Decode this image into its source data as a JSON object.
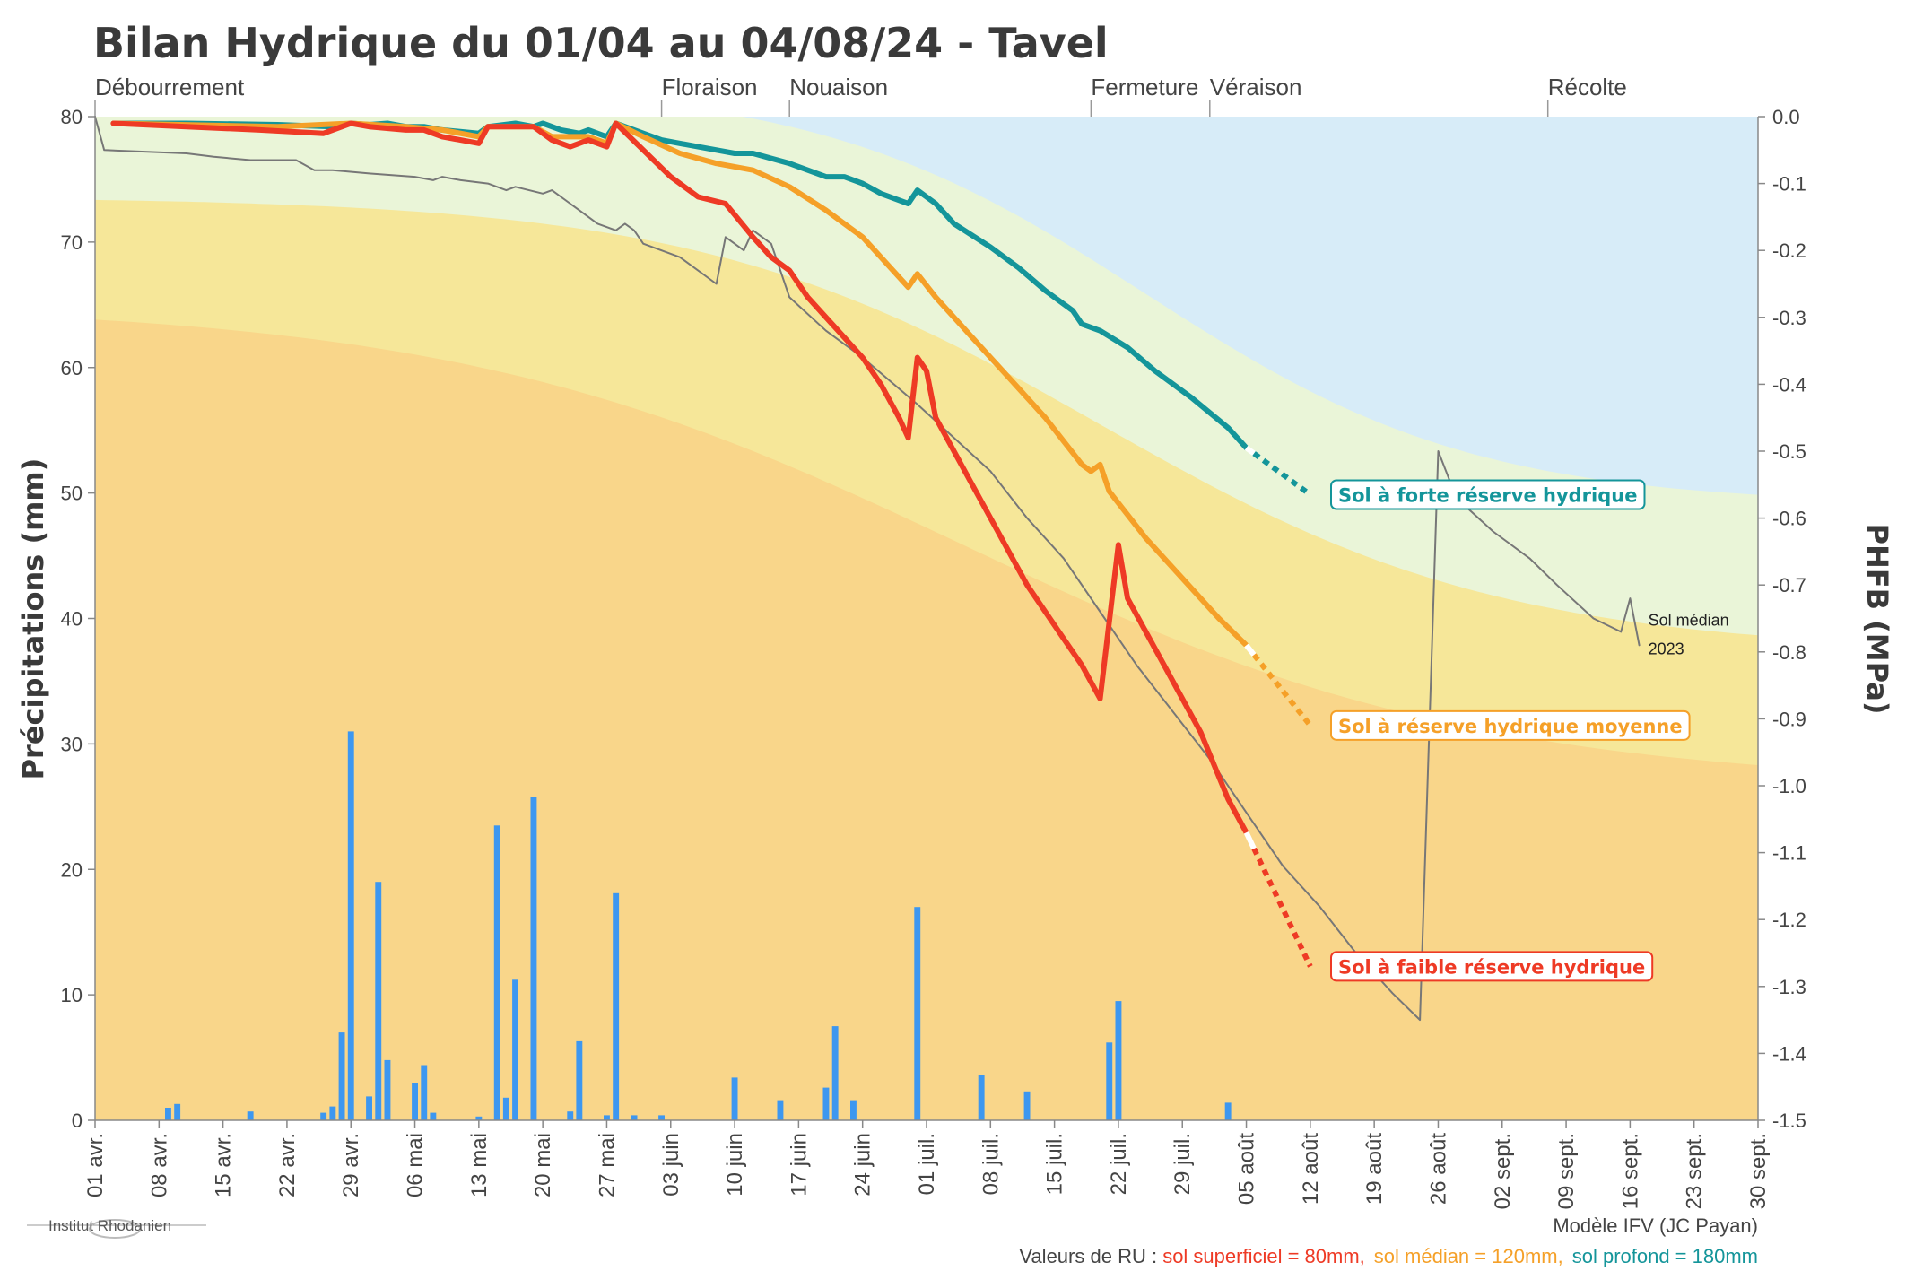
{
  "chart_data": {
    "type": "line",
    "title": "Bilan Hydrique du 01/04 au 04/08/24 - Tavel",
    "y_left_label": "Précipitations (mm)",
    "y_right_label": "PHFB (MPa)",
    "y_left_range": [
      0,
      80
    ],
    "y_right_range": [
      -1.5,
      0
    ],
    "y_left_ticks": [
      "0",
      "10",
      "20",
      "30",
      "40",
      "50",
      "60",
      "70",
      "80"
    ],
    "y_right_ticks": [
      "0.0",
      "-0.1",
      "-0.2",
      "-0.3",
      "-0.4",
      "-0.5",
      "-0.6",
      "-0.7",
      "-0.8",
      "-0.9",
      "-1.0",
      "-1.1",
      "-1.2",
      "-1.3",
      "-1.4",
      "-1.5"
    ],
    "x_range_days": [
      0,
      182
    ],
    "x_ticks": [
      {
        "day": 0,
        "label": "01 avr."
      },
      {
        "day": 7,
        "label": "08 avr."
      },
      {
        "day": 14,
        "label": "15 avr."
      },
      {
        "day": 21,
        "label": "22 avr."
      },
      {
        "day": 28,
        "label": "29 avr."
      },
      {
        "day": 35,
        "label": "06 mai"
      },
      {
        "day": 42,
        "label": "13 mai"
      },
      {
        "day": 49,
        "label": "20 mai"
      },
      {
        "day": 56,
        "label": "27 mai"
      },
      {
        "day": 63,
        "label": "03 juin"
      },
      {
        "day": 70,
        "label": "10 juin"
      },
      {
        "day": 77,
        "label": "17 juin"
      },
      {
        "day": 84,
        "label": "24 juin"
      },
      {
        "day": 91,
        "label": "01 juil."
      },
      {
        "day": 98,
        "label": "08 juil."
      },
      {
        "day": 105,
        "label": "15 juil."
      },
      {
        "day": 112,
        "label": "22 juil."
      },
      {
        "day": 119,
        "label": "29 juil."
      },
      {
        "day": 126,
        "label": "05 août"
      },
      {
        "day": 133,
        "label": "12 août"
      },
      {
        "day": 140,
        "label": "19 août"
      },
      {
        "day": 147,
        "label": "26 août"
      },
      {
        "day": 154,
        "label": "02 sept."
      },
      {
        "day": 161,
        "label": "09 sept."
      },
      {
        "day": 168,
        "label": "16 sept."
      },
      {
        "day": 175,
        "label": "23 sept."
      },
      {
        "day": 182,
        "label": "30 sept."
      }
    ],
    "stages": [
      {
        "label": "Débourrement",
        "day": 0
      },
      {
        "label": "Floraison",
        "day": 62
      },
      {
        "label": "Nouaison",
        "day": 76
      },
      {
        "label": "Fermeture",
        "day": 109
      },
      {
        "label": "Véraison",
        "day": 122
      },
      {
        "label": "Récolte",
        "day": 159
      }
    ],
    "precipitation": [
      {
        "day": 8,
        "mm": 1
      },
      {
        "day": 9,
        "mm": 1.3
      },
      {
        "day": 17,
        "mm": 0.7
      },
      {
        "day": 25,
        "mm": 0.6
      },
      {
        "day": 26,
        "mm": 1.1
      },
      {
        "day": 27,
        "mm": 7
      },
      {
        "day": 28,
        "mm": 31
      },
      {
        "day": 30,
        "mm": 1.9
      },
      {
        "day": 31,
        "mm": 19
      },
      {
        "day": 32,
        "mm": 4.8
      },
      {
        "day": 35,
        "mm": 3
      },
      {
        "day": 36,
        "mm": 4.4
      },
      {
        "day": 37,
        "mm": 0.6
      },
      {
        "day": 42,
        "mm": 0.3
      },
      {
        "day": 44,
        "mm": 23.5
      },
      {
        "day": 45,
        "mm": 1.8
      },
      {
        "day": 46,
        "mm": 11.2
      },
      {
        "day": 48,
        "mm": 25.8
      },
      {
        "day": 52,
        "mm": 0.7
      },
      {
        "day": 53,
        "mm": 6.3
      },
      {
        "day": 56,
        "mm": 0.4
      },
      {
        "day": 57,
        "mm": 18.1
      },
      {
        "day": 59,
        "mm": 0.4
      },
      {
        "day": 62,
        "mm": 0.4
      },
      {
        "day": 70,
        "mm": 3.4
      },
      {
        "day": 75,
        "mm": 1.6
      },
      {
        "day": 80,
        "mm": 2.6
      },
      {
        "day": 81,
        "mm": 7.5
      },
      {
        "day": 83,
        "mm": 1.6
      },
      {
        "day": 90,
        "mm": 17
      },
      {
        "day": 97,
        "mm": 3.6
      },
      {
        "day": 102,
        "mm": 2.3
      },
      {
        "day": 111,
        "mm": 6.2
      },
      {
        "day": 112,
        "mm": 9.5
      },
      {
        "day": 124,
        "mm": 1.4
      }
    ],
    "series": [
      {
        "name": "Sol à forte réserve hydrique",
        "color": "#14959a",
        "values": [
          [
            2,
            -0.01
          ],
          [
            10,
            -0.01
          ],
          [
            20,
            -0.012
          ],
          [
            26,
            -0.015
          ],
          [
            28,
            -0.01
          ],
          [
            30,
            -0.012
          ],
          [
            32,
            -0.01
          ],
          [
            34,
            -0.015
          ],
          [
            36,
            -0.015
          ],
          [
            38,
            -0.02
          ],
          [
            42,
            -0.025
          ],
          [
            43,
            -0.015
          ],
          [
            46,
            -0.01
          ],
          [
            48,
            -0.015
          ],
          [
            49,
            -0.01
          ],
          [
            51,
            -0.02
          ],
          [
            53,
            -0.025
          ],
          [
            54,
            -0.02
          ],
          [
            56,
            -0.03
          ],
          [
            57,
            -0.01
          ],
          [
            58,
            -0.015
          ],
          [
            62,
            -0.035
          ],
          [
            66,
            -0.045
          ],
          [
            70,
            -0.055
          ],
          [
            72,
            -0.055
          ],
          [
            76,
            -0.07
          ],
          [
            80,
            -0.09
          ],
          [
            82,
            -0.09
          ],
          [
            84,
            -0.1
          ],
          [
            86,
            -0.115
          ],
          [
            89,
            -0.13
          ],
          [
            90,
            -0.11
          ],
          [
            92,
            -0.13
          ],
          [
            94,
            -0.16
          ],
          [
            98,
            -0.195
          ],
          [
            101,
            -0.225
          ],
          [
            104,
            -0.26
          ],
          [
            107,
            -0.29
          ],
          [
            108,
            -0.31
          ],
          [
            110,
            -0.32
          ],
          [
            113,
            -0.345
          ],
          [
            116,
            -0.38
          ],
          [
            120,
            -0.42
          ],
          [
            124,
            -0.465
          ],
          [
            126,
            -0.495
          ]
        ],
        "forecast": [
          [
            126,
            -0.495
          ],
          [
            133,
            -0.565
          ]
        ],
        "label_value": -0.565
      },
      {
        "name": "Sol à réserve hydrique moyenne",
        "color": "#f5a028",
        "values": [
          [
            2,
            -0.01
          ],
          [
            20,
            -0.015
          ],
          [
            28,
            -0.01
          ],
          [
            34,
            -0.015
          ],
          [
            38,
            -0.02
          ],
          [
            42,
            -0.03
          ],
          [
            43,
            -0.015
          ],
          [
            48,
            -0.015
          ],
          [
            50,
            -0.03
          ],
          [
            54,
            -0.03
          ],
          [
            56,
            -0.04
          ],
          [
            57,
            -0.01
          ],
          [
            60,
            -0.03
          ],
          [
            64,
            -0.055
          ],
          [
            68,
            -0.07
          ],
          [
            72,
            -0.08
          ],
          [
            76,
            -0.105
          ],
          [
            80,
            -0.14
          ],
          [
            84,
            -0.18
          ],
          [
            88,
            -0.24
          ],
          [
            89,
            -0.255
          ],
          [
            90,
            -0.235
          ],
          [
            92,
            -0.27
          ],
          [
            96,
            -0.33
          ],
          [
            100,
            -0.39
          ],
          [
            104,
            -0.45
          ],
          [
            108,
            -0.52
          ],
          [
            109,
            -0.53
          ],
          [
            110,
            -0.52
          ],
          [
            111,
            -0.56
          ],
          [
            115,
            -0.63
          ],
          [
            119,
            -0.69
          ],
          [
            123,
            -0.75
          ],
          [
            126,
            -0.79
          ]
        ],
        "forecast": [
          [
            126,
            -0.79
          ],
          [
            133,
            -0.91
          ]
        ],
        "label_value": -0.91
      },
      {
        "name": "Sol à faible réserve hydrique",
        "color": "#ee3a25",
        "values": [
          [
            2,
            -0.01
          ],
          [
            10,
            -0.015
          ],
          [
            18,
            -0.02
          ],
          [
            25,
            -0.025
          ],
          [
            28,
            -0.01
          ],
          [
            30,
            -0.015
          ],
          [
            34,
            -0.02
          ],
          [
            36,
            -0.02
          ],
          [
            38,
            -0.03
          ],
          [
            42,
            -0.04
          ],
          [
            43,
            -0.015
          ],
          [
            48,
            -0.015
          ],
          [
            50,
            -0.035
          ],
          [
            52,
            -0.045
          ],
          [
            54,
            -0.035
          ],
          [
            56,
            -0.045
          ],
          [
            57,
            -0.01
          ],
          [
            60,
            -0.05
          ],
          [
            63,
            -0.09
          ],
          [
            66,
            -0.12
          ],
          [
            69,
            -0.13
          ],
          [
            72,
            -0.18
          ],
          [
            74,
            -0.21
          ],
          [
            76,
            -0.23
          ],
          [
            78,
            -0.27
          ],
          [
            80,
            -0.3
          ],
          [
            82,
            -0.33
          ],
          [
            84,
            -0.36
          ],
          [
            86,
            -0.4
          ],
          [
            88,
            -0.45
          ],
          [
            89,
            -0.48
          ],
          [
            90,
            -0.36
          ],
          [
            91,
            -0.38
          ],
          [
            92,
            -0.45
          ],
          [
            96,
            -0.55
          ],
          [
            98,
            -0.6
          ],
          [
            102,
            -0.7
          ],
          [
            106,
            -0.78
          ],
          [
            108,
            -0.82
          ],
          [
            110,
            -0.87
          ],
          [
            112,
            -0.64
          ],
          [
            113,
            -0.72
          ],
          [
            117,
            -0.82
          ],
          [
            121,
            -0.92
          ],
          [
            124,
            -1.02
          ],
          [
            126,
            -1.07
          ]
        ],
        "forecast": [
          [
            126,
            -1.07
          ],
          [
            133,
            -1.27
          ]
        ],
        "label_value": -1.27
      },
      {
        "name": "Sol médian 2023",
        "color": "#777777",
        "values": [
          [
            0,
            0
          ],
          [
            1,
            -0.05
          ],
          [
            10,
            -0.055
          ],
          [
            13,
            -0.06
          ],
          [
            17,
            -0.065
          ],
          [
            22,
            -0.065
          ],
          [
            24,
            -0.08
          ],
          [
            26,
            -0.08
          ],
          [
            30,
            -0.085
          ],
          [
            35,
            -0.09
          ],
          [
            37,
            -0.095
          ],
          [
            38,
            -0.09
          ],
          [
            40,
            -0.095
          ],
          [
            43,
            -0.1
          ],
          [
            45,
            -0.11
          ],
          [
            46,
            -0.105
          ],
          [
            49,
            -0.115
          ],
          [
            50,
            -0.11
          ],
          [
            53,
            -0.14
          ],
          [
            55,
            -0.16
          ],
          [
            57,
            -0.17
          ],
          [
            58,
            -0.16
          ],
          [
            59,
            -0.17
          ],
          [
            60,
            -0.19
          ],
          [
            64,
            -0.21
          ],
          [
            68,
            -0.25
          ],
          [
            69,
            -0.18
          ],
          [
            70,
            -0.19
          ],
          [
            71,
            -0.2
          ],
          [
            72,
            -0.17
          ],
          [
            74,
            -0.19
          ],
          [
            76,
            -0.27
          ],
          [
            80,
            -0.32
          ],
          [
            84,
            -0.36
          ],
          [
            90,
            -0.43
          ],
          [
            94,
            -0.48
          ],
          [
            98,
            -0.53
          ],
          [
            102,
            -0.6
          ],
          [
            106,
            -0.66
          ],
          [
            110,
            -0.74
          ],
          [
            114,
            -0.82
          ],
          [
            118,
            -0.89
          ],
          [
            122,
            -0.96
          ],
          [
            126,
            -1.04
          ],
          [
            130,
            -1.12
          ],
          [
            134,
            -1.18
          ],
          [
            138,
            -1.25
          ],
          [
            142,
            -1.31
          ],
          [
            145,
            -1.35
          ],
          [
            147,
            -0.5
          ],
          [
            149,
            -0.57
          ],
          [
            153,
            -0.62
          ],
          [
            157,
            -0.66
          ],
          [
            160,
            -0.7
          ],
          [
            164,
            -0.75
          ],
          [
            167,
            -0.77
          ],
          [
            168,
            -0.72
          ],
          [
            169,
            -0.79
          ]
        ],
        "label_line1": "Sol médian",
        "label_line2": "2023"
      }
    ]
  },
  "footer": {
    "model": "Modèle IFV (JC Payan)",
    "ru_prefix": "Valeurs de RU : ",
    "ru_superficiel": "sol superficiel = 80mm,",
    "ru_median": "sol médian = 120mm,",
    "ru_profond": "sol profond = 180mm",
    "logo": "Institut Rhodanien"
  }
}
